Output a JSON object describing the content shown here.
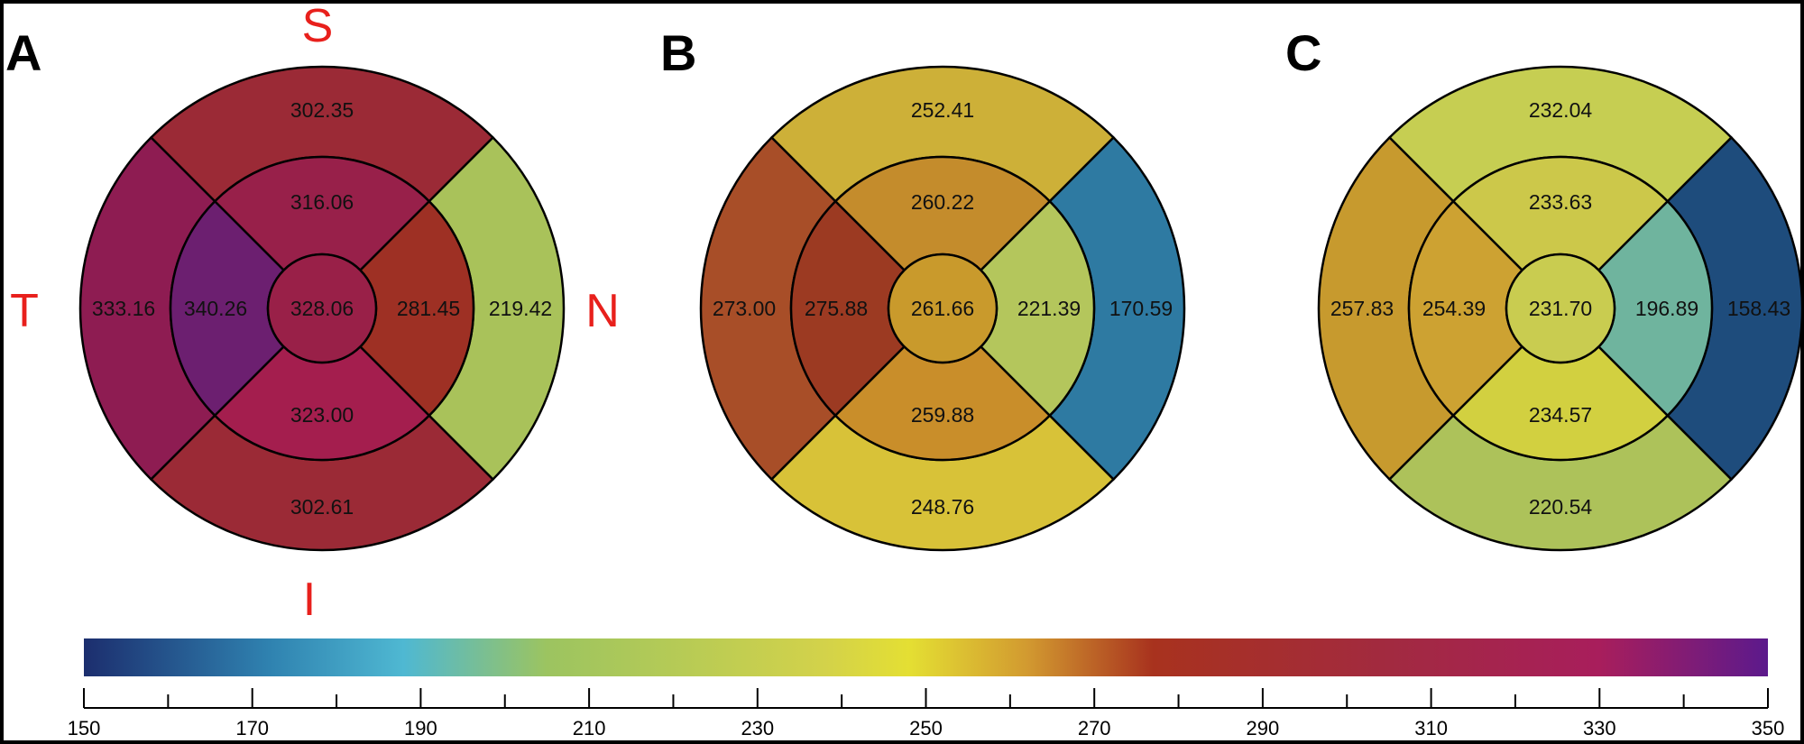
{
  "panels": [
    {
      "letter": "A",
      "values": {
        "center": "328.06",
        "inner_superior": "316.06",
        "inner_nasal": "281.45",
        "inner_inferior": "323.00",
        "inner_temporal": "340.26",
        "outer_superior": "302.35",
        "outer_nasal": "219.42",
        "outer_inferior": "302.61",
        "outer_temporal": "333.16"
      },
      "colors": {
        "center": "#992048",
        "inner_superior": "#98204a",
        "inner_nasal": "#9e3024",
        "inner_inferior": "#a41e4e",
        "inner_temporal": "#6c1f70",
        "outer_superior": "#9b2a36",
        "outer_nasal": "#a9c25a",
        "outer_inferior": "#9b2a36",
        "outer_temporal": "#8e1c52"
      }
    },
    {
      "letter": "B",
      "values": {
        "center": "261.66",
        "inner_superior": "260.22",
        "inner_nasal": "221.39",
        "inner_inferior": "259.88",
        "inner_temporal": "275.88",
        "outer_superior": "252.41",
        "outer_nasal": "170.59",
        "outer_inferior": "248.76",
        "outer_temporal": "273.00"
      },
      "colors": {
        "center": "#c99a2c",
        "inner_superior": "#c48c2c",
        "inner_nasal": "#b4c65c",
        "inner_inferior": "#c98e2a",
        "inner_temporal": "#9c3a22",
        "outer_superior": "#cdb038",
        "outer_nasal": "#2e7aa2",
        "outer_inferior": "#d8c238",
        "outer_temporal": "#a84e28"
      }
    },
    {
      "letter": "C",
      "values": {
        "center": "231.70",
        "inner_superior": "233.63",
        "inner_nasal": "196.89",
        "inner_inferior": "234.57",
        "inner_temporal": "254.39",
        "outer_superior": "232.04",
        "outer_nasal": "158.43",
        "outer_inferior": "220.54",
        "outer_temporal": "257.83"
      },
      "colors": {
        "center": "#c9cc50",
        "inner_superior": "#ccc84a",
        "inner_nasal": "#6fb49e",
        "inner_inferior": "#d2d040",
        "inner_temporal": "#cda232",
        "outer_superior": "#c6ce52",
        "outer_nasal": "#1e4c7c",
        "outer_inferior": "#adc25a",
        "outer_temporal": "#c79a2e"
      }
    }
  ],
  "direction_labels": {
    "superior": "S",
    "temporal": "T",
    "nasal": "N",
    "inferior": "I"
  },
  "colorbar": {
    "tick_labels": [
      "150",
      "170",
      "190",
      "210",
      "230",
      "250",
      "270",
      "290",
      "310",
      "330",
      "350"
    ],
    "min": 150,
    "max": 350,
    "gradient_stops": [
      {
        "value": 150,
        "color": "#1c2e6e"
      },
      {
        "value": 172,
        "color": "#2f82b0"
      },
      {
        "value": 188,
        "color": "#4fb8d2"
      },
      {
        "value": 205,
        "color": "#9cc460"
      },
      {
        "value": 238,
        "color": "#d3d24a"
      },
      {
        "value": 248,
        "color": "#e4df33"
      },
      {
        "value": 262,
        "color": "#d29a30"
      },
      {
        "value": 277,
        "color": "#a8321e"
      },
      {
        "value": 305,
        "color": "#a22a40"
      },
      {
        "value": 330,
        "color": "#a81e5c"
      },
      {
        "value": 350,
        "color": "#5c1a8c"
      }
    ]
  }
}
